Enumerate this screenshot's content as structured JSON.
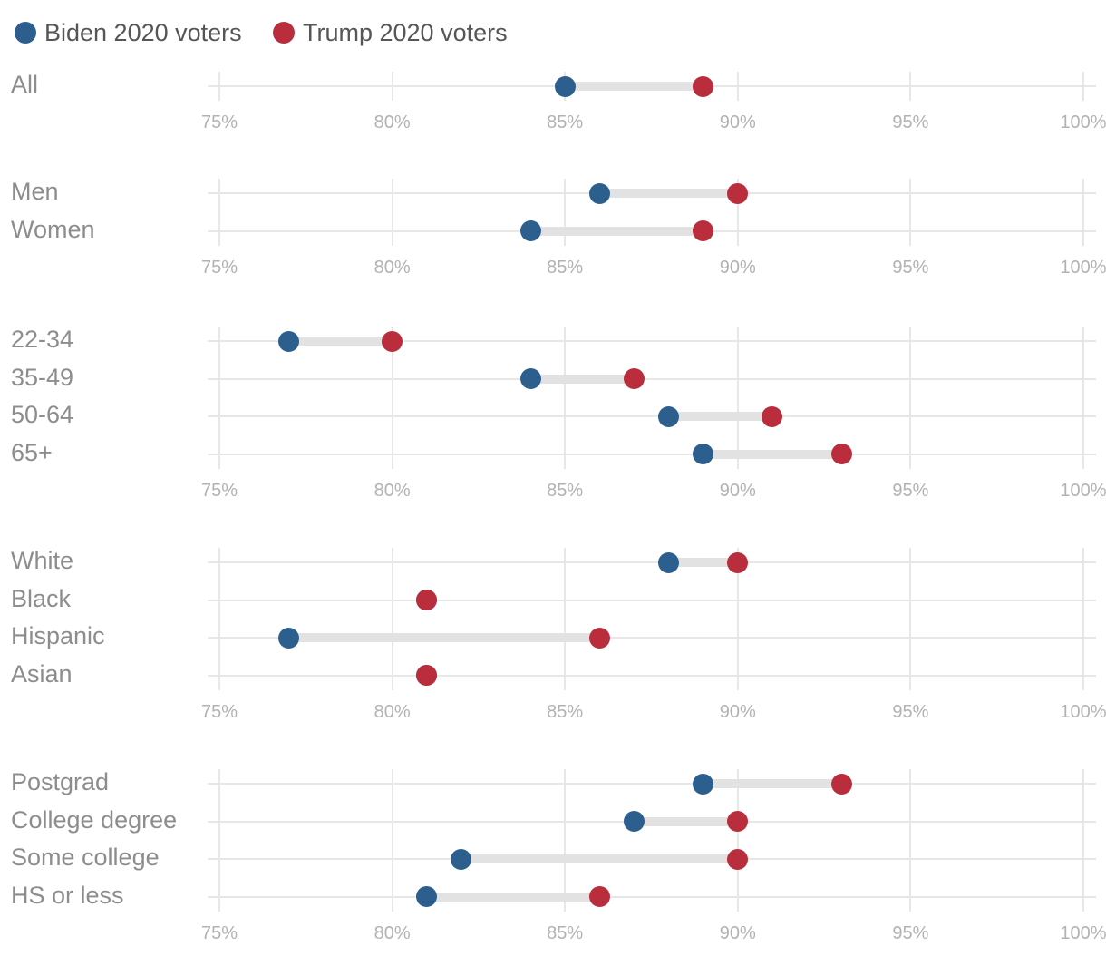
{
  "colors": {
    "biden": "#2d5f8e",
    "trump": "#ba2d3c",
    "gridline": "#e7e7e7",
    "connector": "#e2e2e2",
    "row_label": "#8d8d8d",
    "tick_label": "#b2b2b2",
    "legend_text": "#565656",
    "background": "#ffffff"
  },
  "legend": {
    "items": [
      {
        "label": "Biden 2020 voters",
        "series": "biden"
      },
      {
        "label": "Trump 2020 voters",
        "series": "trump"
      }
    ]
  },
  "chart_data": {
    "type": "dumbbell",
    "title": "",
    "unit": "%",
    "x_axis": {
      "min": 75,
      "max": 100,
      "tick_values": [
        75,
        80,
        85,
        90,
        95,
        100
      ],
      "tick_labels": [
        "75%",
        "80%",
        "85%",
        "90%",
        "95%",
        "100%"
      ]
    },
    "series_names": [
      "Biden 2020 voters",
      "Trump 2020 voters"
    ],
    "legend_position": "top-left",
    "grid": true,
    "panels": [
      {
        "name": "all",
        "rows": [
          {
            "label": "All",
            "biden": 85,
            "trump": 89
          }
        ]
      },
      {
        "name": "gender",
        "rows": [
          {
            "label": "Men",
            "biden": 86,
            "trump": 90
          },
          {
            "label": "Women",
            "biden": 84,
            "trump": 89
          }
        ]
      },
      {
        "name": "age",
        "rows": [
          {
            "label": "22-34",
            "biden": 77,
            "trump": 80
          },
          {
            "label": "35-49",
            "biden": 84,
            "trump": 87
          },
          {
            "label": "50-64",
            "biden": 88,
            "trump": 91
          },
          {
            "label": "65+",
            "biden": 89,
            "trump": 93
          }
        ]
      },
      {
        "name": "race",
        "rows": [
          {
            "label": "White",
            "biden": 88,
            "trump": 90
          },
          {
            "label": "Black",
            "biden": 81,
            "trump": 81
          },
          {
            "label": "Hispanic",
            "biden": 77,
            "trump": 86
          },
          {
            "label": "Asian",
            "biden": 81,
            "trump": 81
          }
        ]
      },
      {
        "name": "education",
        "rows": [
          {
            "label": "Postgrad",
            "biden": 89,
            "trump": 93
          },
          {
            "label": "College degree",
            "biden": 87,
            "trump": 90
          },
          {
            "label": "Some college",
            "biden": 82,
            "trump": 90
          },
          {
            "label": "HS or less",
            "biden": 81,
            "trump": 86
          }
        ]
      }
    ]
  }
}
